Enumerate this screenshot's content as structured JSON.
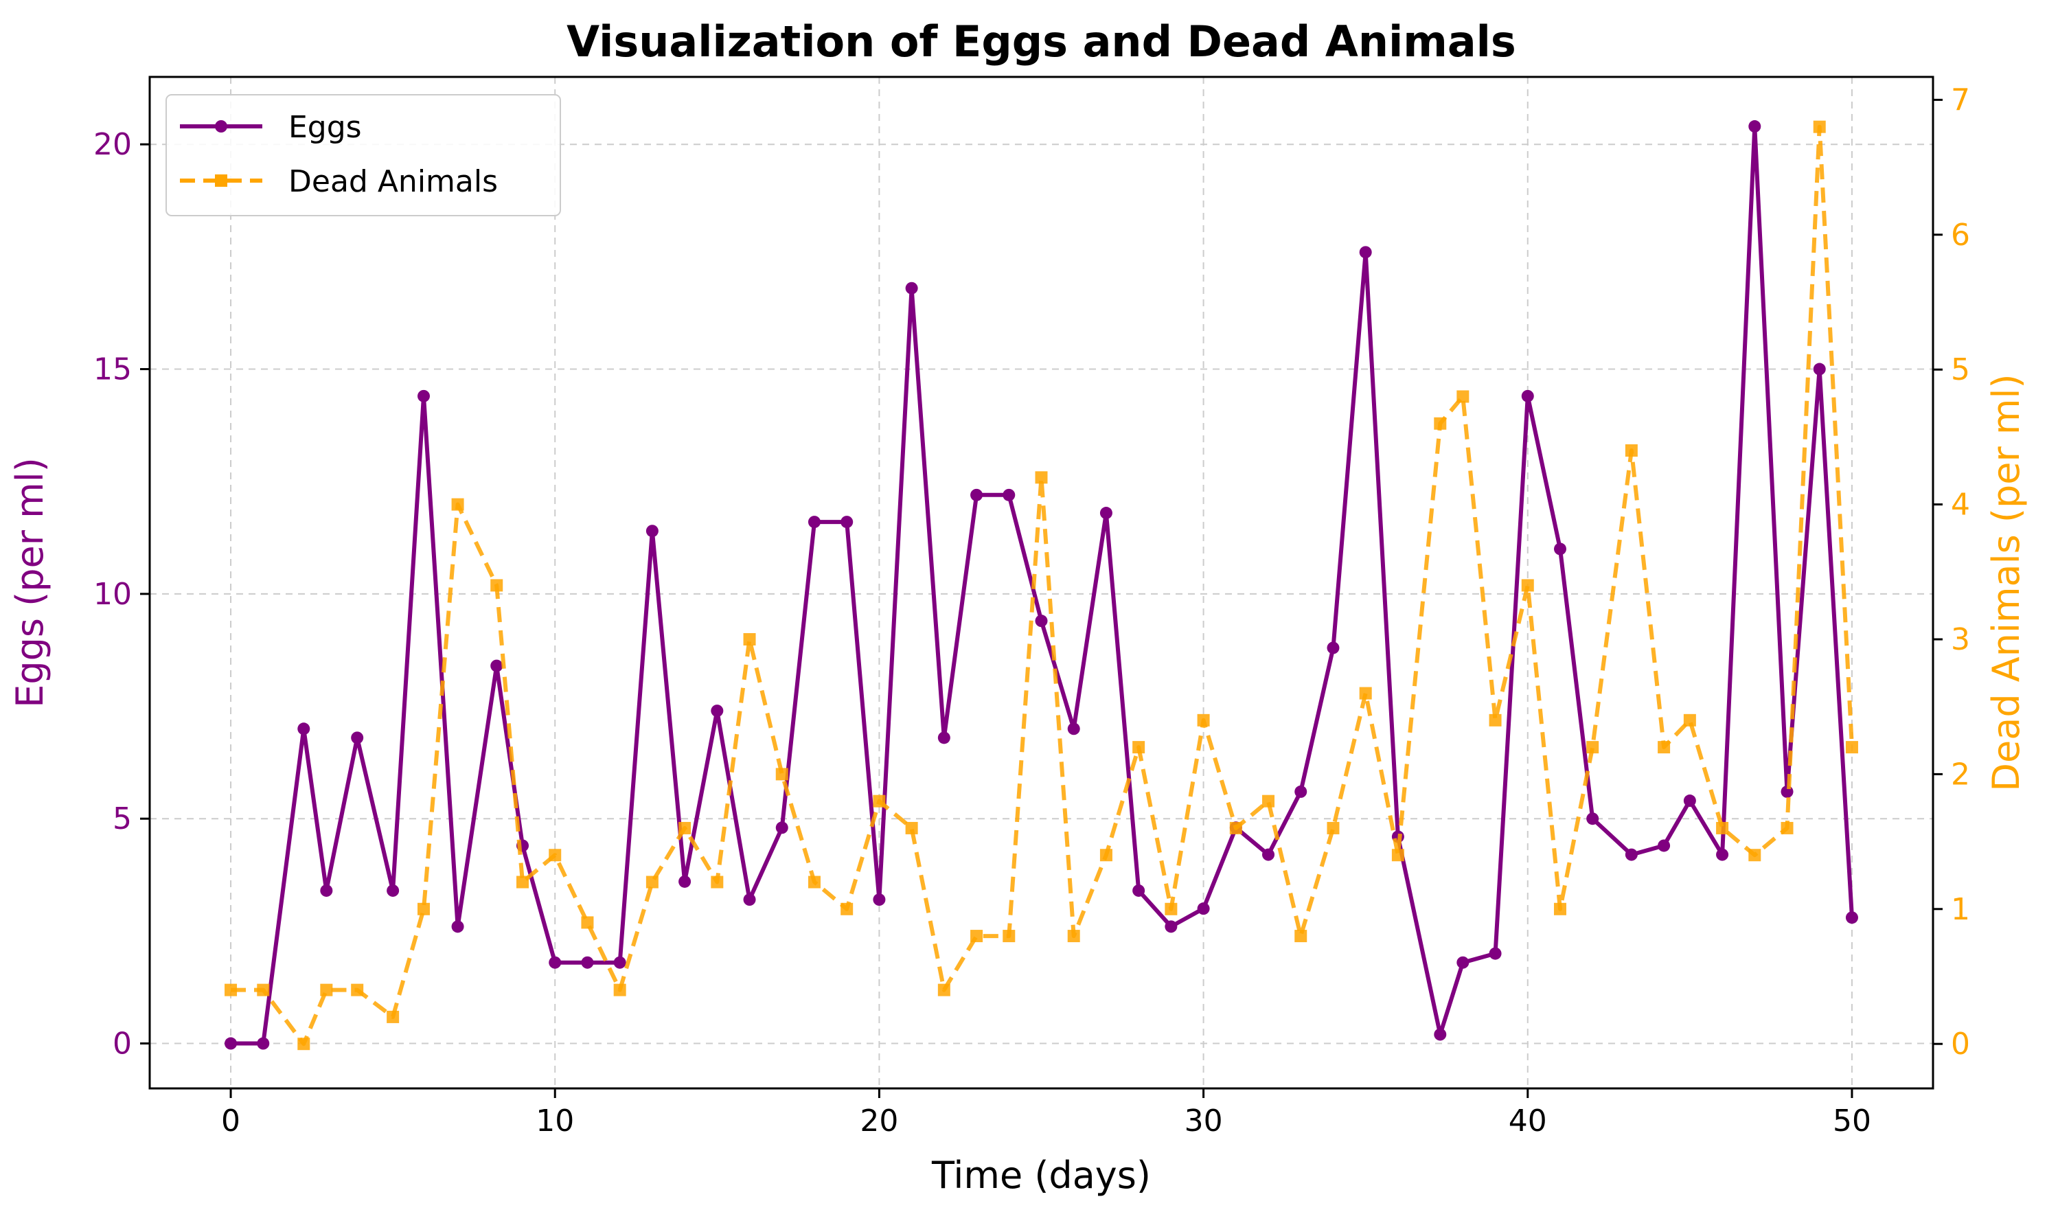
{
  "chart_data": {
    "type": "line",
    "title": "Visualization of Eggs and Dead Animals",
    "xlabel": "Time (days)",
    "ylabel_left": "Eggs (per ml)",
    "ylabel_right": "Dead Animals (per ml)",
    "xlim": [
      -2.5,
      52.5
    ],
    "ylim_left": [
      -1.0,
      21.5
    ],
    "ylim_right": [
      -0.33,
      7.17
    ],
    "x_ticks": [
      0,
      10,
      20,
      30,
      40,
      50
    ],
    "y_ticks_left": [
      0,
      5,
      10,
      15,
      20
    ],
    "y_ticks_right": [
      0,
      1,
      2,
      3,
      4,
      5,
      6,
      7
    ],
    "grid": true,
    "legend_position": "top-left",
    "colors": {
      "eggs": "#800080",
      "dead_animals": "#FFA500",
      "grid": "#cccccc"
    },
    "series": [
      {
        "name": "Eggs",
        "axis": "left",
        "style": "solid-circle",
        "x": [
          0.0,
          1.0,
          2.25,
          2.95,
          3.9,
          5.0,
          5.95,
          7.0,
          8.2,
          9.0,
          10.0,
          11.0,
          12.0,
          13.0,
          14.0,
          15.0,
          16.0,
          17.0,
          18.0,
          19.0,
          20.0,
          21.0,
          22.0,
          23.0,
          24.0,
          25.0,
          26.0,
          27.0,
          28.0,
          29.0,
          30.0,
          31.0,
          32.0,
          33.0,
          34.0,
          35.0,
          36.0,
          37.3,
          38.0,
          39.0,
          40.0,
          41.0,
          42.0,
          43.2,
          44.2,
          45.0,
          46.0,
          47.0,
          48.0,
          49.0,
          50.0
        ],
        "values": [
          0.0,
          0.0,
          7.0,
          3.4,
          6.8,
          3.4,
          14.4,
          2.6,
          8.4,
          4.4,
          1.8,
          1.8,
          1.8,
          11.4,
          3.6,
          7.4,
          3.2,
          4.8,
          11.6,
          11.6,
          3.2,
          16.8,
          6.8,
          12.2,
          12.2,
          9.4,
          7.0,
          11.8,
          3.4,
          2.6,
          3.0,
          4.8,
          4.2,
          5.6,
          8.8,
          17.6,
          4.6,
          0.2,
          1.8,
          2.0,
          14.4,
          11.0,
          5.0,
          4.2,
          4.4,
          5.4,
          4.2,
          20.4,
          5.6,
          15.0,
          2.8
        ]
      },
      {
        "name": "Dead Animals",
        "axis": "right",
        "style": "dashed-square",
        "x": [
          0.0,
          1.0,
          2.25,
          2.95,
          3.9,
          5.0,
          5.95,
          7.0,
          8.2,
          9.0,
          10.0,
          11.0,
          12.0,
          13.0,
          14.0,
          15.0,
          16.0,
          17.0,
          18.0,
          19.0,
          20.0,
          21.0,
          22.0,
          23.0,
          24.0,
          25.0,
          26.0,
          27.0,
          28.0,
          29.0,
          30.0,
          31.0,
          32.0,
          33.0,
          34.0,
          35.0,
          36.0,
          37.3,
          38.0,
          39.0,
          40.0,
          41.0,
          42.0,
          43.2,
          44.2,
          45.0,
          46.0,
          47.0,
          48.0,
          49.0,
          50.0
        ],
        "values": [
          0.4,
          0.4,
          0.0,
          0.4,
          0.4,
          0.2,
          1.0,
          4.0,
          3.4,
          1.2,
          1.4,
          0.9,
          0.4,
          1.2,
          1.6,
          1.2,
          3.0,
          2.0,
          1.2,
          1.0,
          1.8,
          1.6,
          0.4,
          0.8,
          0.8,
          4.2,
          0.8,
          1.4,
          2.2,
          1.0,
          2.4,
          1.6,
          1.8,
          0.8,
          1.6,
          2.6,
          1.4,
          4.6,
          4.8,
          2.4,
          3.4,
          1.0,
          2.2,
          4.4,
          2.2,
          2.4,
          1.6,
          1.4,
          1.6,
          6.8,
          2.2
        ]
      }
    ]
  }
}
